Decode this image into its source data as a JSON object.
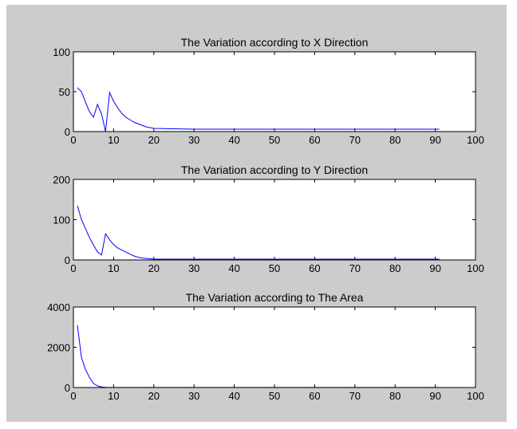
{
  "chart_data": [
    {
      "type": "line",
      "title": "The Variation according to X Direction",
      "xlabel": "",
      "ylabel": "",
      "xlim": [
        0,
        100
      ],
      "ylim": [
        0,
        100
      ],
      "xticks": [
        0,
        10,
        20,
        30,
        40,
        50,
        60,
        70,
        80,
        90,
        100
      ],
      "yticks": [
        0,
        50,
        100
      ],
      "grid": false,
      "line_color": "#0000ff",
      "x": [
        1,
        2,
        3,
        4,
        5,
        6,
        7,
        8,
        9,
        10,
        11,
        12,
        13,
        14,
        15,
        16,
        17,
        18,
        19,
        20,
        30,
        40,
        50,
        60,
        70,
        80,
        91
      ],
      "values": [
        55,
        50,
        37,
        25,
        18,
        34,
        22,
        0,
        49,
        38,
        30,
        23,
        18,
        15,
        12,
        10,
        8,
        6,
        5,
        4,
        3,
        3,
        3,
        3,
        3,
        3,
        3
      ]
    },
    {
      "type": "line",
      "title": "The Variation according to Y Direction",
      "xlabel": "",
      "ylabel": "",
      "xlim": [
        0,
        100
      ],
      "ylim": [
        0,
        200
      ],
      "xticks": [
        0,
        10,
        20,
        30,
        40,
        50,
        60,
        70,
        80,
        90,
        100
      ],
      "yticks": [
        0,
        100,
        200
      ],
      "grid": false,
      "line_color": "#0000ff",
      "x": [
        1,
        2,
        3,
        4,
        5,
        6,
        7,
        8,
        9,
        10,
        11,
        12,
        13,
        14,
        15,
        16,
        17,
        18,
        19,
        20,
        30,
        40,
        50,
        60,
        70,
        80,
        91
      ],
      "values": [
        135,
        100,
        78,
        55,
        37,
        20,
        12,
        65,
        50,
        38,
        30,
        25,
        20,
        15,
        10,
        7,
        5,
        4,
        3,
        2,
        2,
        2,
        2,
        2,
        2,
        2,
        2
      ]
    },
    {
      "type": "line",
      "title": "The Variation according to The Area",
      "xlabel": "",
      "ylabel": "",
      "xlim": [
        0,
        100
      ],
      "ylim": [
        0,
        4000
      ],
      "xticks": [
        0,
        10,
        20,
        30,
        40,
        50,
        60,
        70,
        80,
        90,
        100
      ],
      "yticks": [
        0,
        2000,
        4000
      ],
      "grid": false,
      "line_color": "#0000ff",
      "x": [
        1,
        2,
        3,
        4,
        5,
        6,
        7,
        8,
        10,
        20,
        30,
        40,
        50,
        60,
        70,
        80,
        91
      ],
      "values": [
        3100,
        1500,
        900,
        500,
        200,
        80,
        30,
        10,
        5,
        5,
        5,
        5,
        5,
        5,
        5,
        5,
        5
      ]
    }
  ]
}
